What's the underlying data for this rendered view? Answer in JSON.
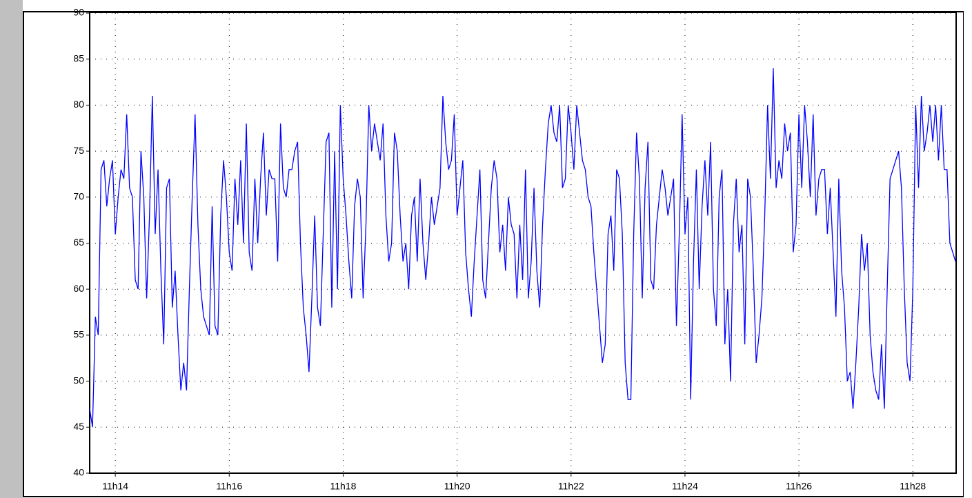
{
  "chart_data": {
    "type": "line",
    "xlim": [
      13.55,
      28.76
    ],
    "xticks": [
      {
        "value": 14,
        "label": "11h14"
      },
      {
        "value": 16,
        "label": "11h16"
      },
      {
        "value": 18,
        "label": "11h18"
      },
      {
        "value": 20,
        "label": "11h20"
      },
      {
        "value": 22,
        "label": "11h22"
      },
      {
        "value": 24,
        "label": "11h24"
      },
      {
        "value": 26,
        "label": "11h26"
      },
      {
        "value": 28,
        "label": "11h28"
      }
    ],
    "ylim": [
      40,
      90
    ],
    "yticks": [
      40,
      45,
      50,
      55,
      60,
      65,
      70,
      75,
      80,
      85,
      90
    ],
    "grid": true,
    "color": "#0000ff",
    "x": [
      13.55,
      13.6,
      13.65,
      13.7,
      13.75,
      13.8,
      13.85,
      13.9,
      13.95,
      14,
      14.05,
      14.1,
      14.15,
      14.2,
      14.25,
      14.3,
      14.35,
      14.4,
      14.45,
      14.5,
      14.55,
      14.6,
      14.65,
      14.7,
      14.75,
      14.8,
      14.85,
      14.9,
      14.95,
      15,
      15.05,
      15.1,
      15.15,
      15.2,
      15.25,
      15.3,
      15.35,
      15.4,
      15.45,
      15.5,
      15.55,
      15.6,
      15.65,
      15.7,
      15.75,
      15.8,
      15.85,
      15.9,
      15.95,
      16,
      16.05,
      16.1,
      16.15,
      16.2,
      16.25,
      16.3,
      16.35,
      16.4,
      16.45,
      16.5,
      16.55,
      16.6,
      16.65,
      16.7,
      16.75,
      16.8,
      16.85,
      16.9,
      16.95,
      17,
      17.05,
      17.1,
      17.15,
      17.2,
      17.25,
      17.3,
      17.35,
      17.4,
      17.45,
      17.5,
      17.55,
      17.6,
      17.65,
      17.7,
      17.75,
      17.8,
      17.85,
      17.9,
      17.95,
      18,
      18.05,
      18.1,
      18.15,
      18.2,
      18.25,
      18.3,
      18.35,
      18.4,
      18.45,
      18.5,
      18.55,
      18.6,
      18.65,
      18.7,
      18.75,
      18.8,
      18.85,
      18.9,
      18.95,
      19,
      19.05,
      19.1,
      19.15,
      19.2,
      19.25,
      19.3,
      19.35,
      19.4,
      19.45,
      19.5,
      19.55,
      19.6,
      19.65,
      19.7,
      19.75,
      19.8,
      19.85,
      19.9,
      19.95,
      20,
      20.05,
      20.1,
      20.15,
      20.2,
      20.25,
      20.3,
      20.35,
      20.4,
      20.45,
      20.5,
      20.55,
      20.6,
      20.65,
      20.7,
      20.75,
      20.8,
      20.85,
      20.9,
      20.95,
      21,
      21.05,
      21.1,
      21.15,
      21.2,
      21.25,
      21.3,
      21.35,
      21.4,
      21.45,
      21.5,
      21.55,
      21.6,
      21.65,
      21.7,
      21.75,
      21.8,
      21.85,
      21.9,
      21.95,
      22,
      22.05,
      22.1,
      22.15,
      22.2,
      22.25,
      22.3,
      22.35,
      22.4,
      22.45,
      22.5,
      22.55,
      22.6,
      22.65,
      22.7,
      22.75,
      22.8,
      22.85,
      22.9,
      22.95,
      23,
      23.05,
      23.1,
      23.15,
      23.2,
      23.25,
      23.3,
      23.35,
      23.4,
      23.45,
      23.5,
      23.55,
      23.6,
      23.65,
      23.7,
      23.75,
      23.8,
      23.85,
      23.9,
      23.95,
      24,
      24.05,
      24.1,
      24.15,
      24.2,
      24.25,
      24.3,
      24.35,
      24.4,
      24.45,
      24.5,
      24.55,
      24.6,
      24.65,
      24.7,
      24.75,
      24.8,
      24.85,
      24.9,
      24.95,
      25,
      25.05,
      25.1,
      25.15,
      25.2,
      25.25,
      25.3,
      25.35,
      25.4,
      25.45,
      25.5,
      25.55,
      25.6,
      25.65,
      25.7,
      25.75,
      25.8,
      25.85,
      25.9,
      25.95,
      26,
      26.05,
      26.1,
      26.15,
      26.2,
      26.25,
      26.3,
      26.35,
      26.4,
      26.45,
      26.5,
      26.55,
      26.6,
      26.65,
      26.7,
      26.75,
      26.8,
      26.85,
      26.9,
      26.95,
      27,
      27.05,
      27.1,
      27.15,
      27.2,
      27.25,
      27.3,
      27.35,
      27.4,
      27.45,
      27.5,
      27.55,
      27.6,
      27.65,
      27.7,
      27.75,
      27.8,
      27.85,
      27.9,
      27.95,
      28,
      28.05,
      28.1,
      28.15,
      28.2,
      28.25,
      28.3,
      28.35,
      28.4,
      28.45,
      28.5,
      28.55,
      28.6,
      28.65,
      28.7,
      28.75
    ],
    "values": [
      47,
      45,
      57,
      55,
      73,
      74,
      69,
      72,
      74,
      66,
      70,
      73,
      72,
      79,
      71,
      70,
      61,
      60,
      75,
      70,
      59,
      68,
      81,
      66,
      73,
      62,
      54,
      71,
      72,
      58,
      62,
      55,
      49,
      52,
      49,
      60,
      70,
      79,
      67,
      60,
      57,
      56,
      55,
      69,
      56,
      55,
      68,
      74,
      70,
      64,
      62,
      72,
      67,
      74,
      65,
      78,
      64,
      62,
      72,
      65,
      72,
      77,
      68,
      73,
      72,
      72,
      63,
      78,
      71,
      70,
      73,
      73,
      75,
      76,
      65,
      58,
      55,
      51,
      59,
      68,
      58,
      56,
      66,
      76,
      77,
      58,
      75,
      60,
      80,
      72,
      68,
      63,
      59,
      69,
      72,
      70,
      59,
      67,
      80,
      75,
      78,
      76,
      74,
      78,
      68,
      63,
      65,
      77,
      75,
      68,
      63,
      65,
      60,
      68,
      70,
      63,
      72,
      65,
      61,
      65,
      70,
      67,
      69,
      71,
      81,
      76,
      73,
      74,
      79,
      68,
      71,
      74,
      64,
      60,
      57,
      63,
      68,
      73,
      61,
      59,
      65,
      71,
      74,
      72,
      64,
      67,
      62,
      70,
      67,
      66,
      59,
      67,
      61,
      73,
      59,
      63,
      71,
      62,
      58,
      67,
      73,
      78,
      80,
      77,
      76,
      80,
      71,
      72,
      80,
      77,
      73,
      80,
      77,
      74,
      73,
      70,
      69,
      64,
      60,
      56,
      52,
      54,
      66,
      68,
      62,
      73,
      72,
      66,
      52,
      48,
      48,
      66,
      77,
      72,
      59,
      71,
      76,
      61,
      60,
      67,
      70,
      73,
      71,
      68,
      70,
      72,
      56,
      66,
      79,
      66,
      70,
      48,
      63,
      73,
      60,
      69,
      74,
      68,
      76,
      60,
      56,
      70,
      73,
      54,
      60,
      50,
      67,
      72,
      64,
      67,
      54,
      72,
      70,
      62,
      52,
      55,
      59,
      68,
      80,
      72,
      84,
      71,
      74,
      72,
      78,
      75,
      77,
      64,
      67,
      79,
      71,
      80,
      76,
      70,
      79,
      68,
      72,
      73,
      73,
      66,
      71,
      64,
      57,
      72,
      62,
      58,
      50,
      51,
      47,
      52,
      58,
      66,
      62,
      65,
      55,
      51,
      49,
      48,
      54,
      47,
      60,
      72,
      73,
      74,
      75,
      71,
      60,
      52,
      50,
      60,
      80,
      71,
      81,
      75,
      77,
      80,
      76,
      80,
      74,
      80,
      73,
      73,
      65,
      64,
      63
    ]
  }
}
